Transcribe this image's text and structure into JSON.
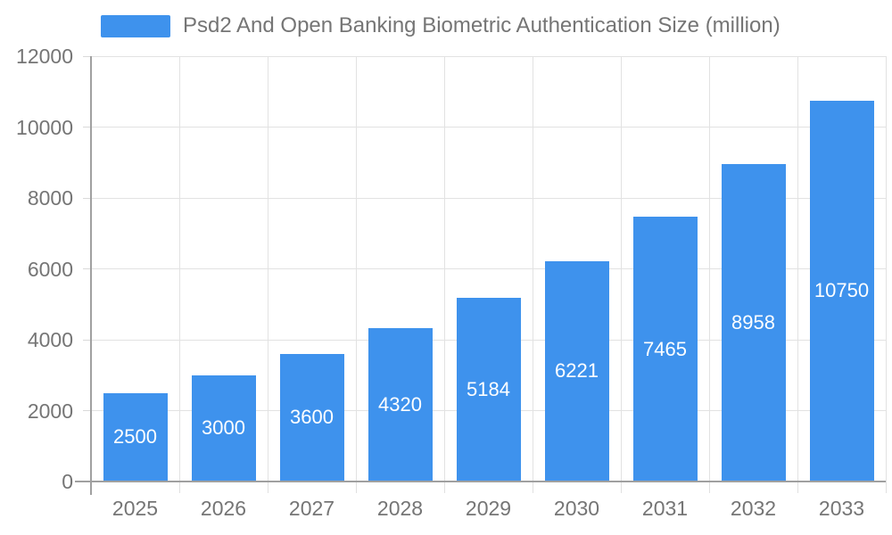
{
  "legend": {
    "label": "Psd2 And Open Banking Biometric Authentication Size (million)",
    "swatch_color": "#3E92ED"
  },
  "chart_data": {
    "type": "bar",
    "title": "Psd2 And Open Banking Biometric Authentication Size (million)",
    "categories": [
      "2025",
      "2026",
      "2027",
      "2028",
      "2029",
      "2030",
      "2031",
      "2032",
      "2033"
    ],
    "values": [
      2500,
      3000,
      3600,
      4320,
      5184,
      6221,
      7465,
      8958,
      10750
    ],
    "xlabel": "",
    "ylabel": "",
    "ylim": [
      0,
      12000
    ],
    "yticks": [
      0,
      2000,
      4000,
      6000,
      8000,
      10000,
      12000
    ],
    "grid": true,
    "legend_position": "top-left",
    "bar_color": "#3E92ED",
    "value_label_color": "#FFFFFF",
    "axis_color": "#A0A0A0",
    "gridline_color": "#E2E2E2",
    "tick_label_color": "#757575",
    "background_color": "#FFFFFF"
  }
}
